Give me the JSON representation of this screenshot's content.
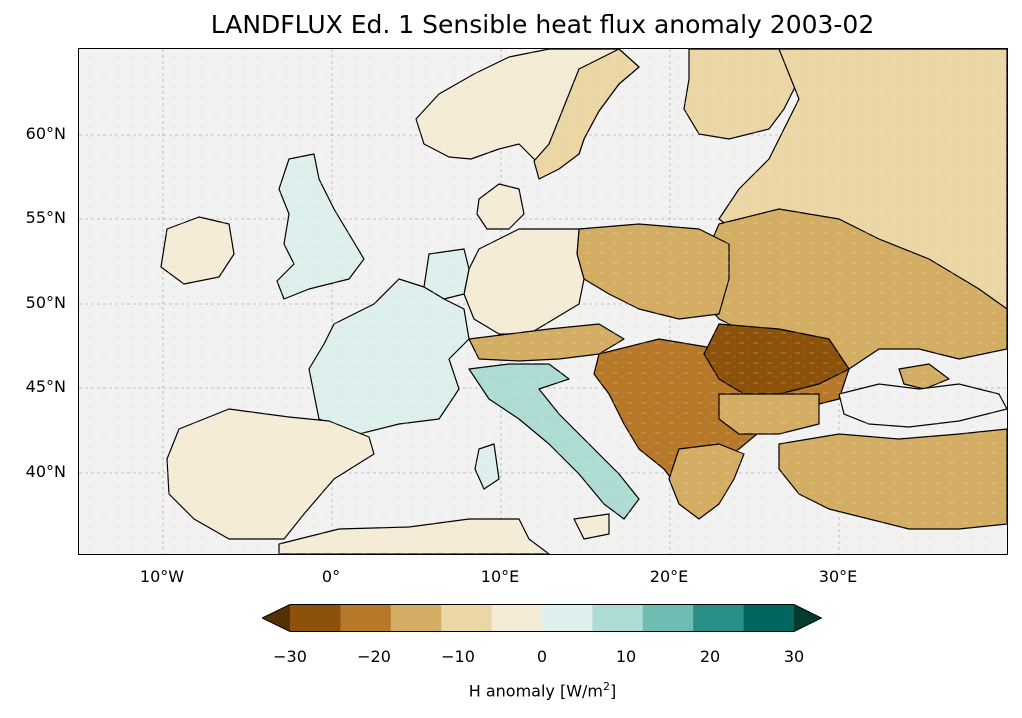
{
  "title": "LANDFLUX Ed. 1 Sensible heat flux anomaly 2003-02",
  "map": {
    "lon_range": [
      -15,
      40
    ],
    "lat_range": [
      35,
      65
    ],
    "lat_ticks": [
      "60°N",
      "55°N",
      "50°N",
      "45°N",
      "40°N"
    ],
    "lon_ticks": [
      "10°W",
      "0°",
      "10°E",
      "20°E",
      "30°E"
    ],
    "ocean_color": "#f2f2f2",
    "gridlines": true
  },
  "colorbar": {
    "ticks": [
      "−30",
      "−20",
      "−10",
      "0",
      "10",
      "20",
      "30"
    ],
    "label_main": "H anomaly [W/m",
    "label_sup": "2",
    "label_end": "]",
    "colors": [
      "#543005",
      "#8c510a",
      "#b8782a",
      "#d4ad65",
      "#ebd7a6",
      "#f5ecd8",
      "#ddf0ed",
      "#acdcd3",
      "#6dbdb2",
      "#2a8f86",
      "#01665e",
      "#003c30"
    ],
    "extend": "both"
  }
}
